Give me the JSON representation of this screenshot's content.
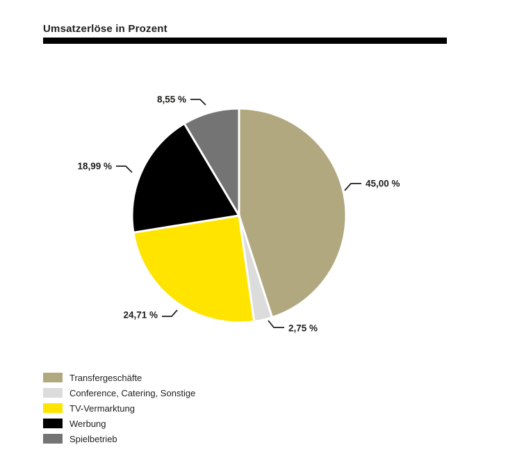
{
  "header": {
    "title": "Umsatzerlöse in Prozent"
  },
  "chart_data": {
    "type": "pie",
    "title": "Umsatzerlöse in Prozent",
    "unit": "%",
    "start_angle_deg": 0,
    "direction": "clockwise",
    "total": 100,
    "slices": [
      {
        "label": "Transfergeschäfte",
        "value": 45.0,
        "display": "45,00 %",
        "color": "#b1a87f"
      },
      {
        "label": "Conference, Catering, Sonstige",
        "value": 2.75,
        "display": "2,75 %",
        "color": "#dcdcdc"
      },
      {
        "label": "TV-Vermarktung",
        "value": 24.71,
        "display": "24,71 %",
        "color": "#ffe400"
      },
      {
        "label": "Werbung",
        "value": 18.99,
        "display": "18,99 %",
        "color": "#000000"
      },
      {
        "label": "Spielbetrieb",
        "value": 8.55,
        "display": "8,55 %",
        "color": "#747474"
      }
    ],
    "legend_position": "bottom-left",
    "label_color": "#1d1d1b",
    "rule_color": "#000000",
    "slice_gap_color": "#ffffff"
  }
}
